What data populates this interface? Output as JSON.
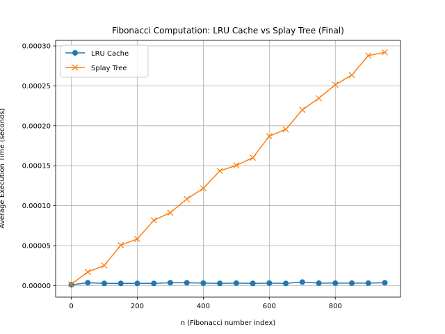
{
  "chart_data": {
    "type": "line",
    "title": "Fibonacci Computation: LRU Cache vs Splay Tree (Final)",
    "xlabel": "n (Fibonacci number index)",
    "ylabel": "Average Execution Time (seconds)",
    "xlim": [
      -47.5,
      997.5
    ],
    "ylim": [
      -1.45e-05,
      0.000307
    ],
    "xticks": [
      0,
      200,
      400,
      600,
      800
    ],
    "xtick_labels": [
      "0",
      "200",
      "400",
      "600",
      "800"
    ],
    "yticks": [
      0,
      5e-05,
      0.0001,
      0.00015,
      0.0002,
      0.00025,
      0.0003
    ],
    "ytick_labels": [
      "0.00000",
      "0.00005",
      "0.00010",
      "0.00015",
      "0.00020",
      "0.00025",
      "0.00030"
    ],
    "grid": true,
    "legend_position": "upper-left",
    "x": [
      0,
      50,
      100,
      150,
      200,
      250,
      300,
      350,
      400,
      450,
      500,
      550,
      600,
      650,
      700,
      750,
      800,
      850,
      900,
      950
    ],
    "series": [
      {
        "name": "LRU Cache",
        "color": "#1f77b4",
        "marker": "circle",
        "values": [
          1e-06,
          3.5e-06,
          2.7e-06,
          2.7e-06,
          2.7e-06,
          2.7e-06,
          3.5e-06,
          3.5e-06,
          3e-06,
          2.7e-06,
          3e-06,
          2.7e-06,
          3e-06,
          2.7e-06,
          4.3e-06,
          3e-06,
          3e-06,
          3e-06,
          3e-06,
          3.5e-06
        ]
      },
      {
        "name": "Splay Tree",
        "color": "#ff7f0e",
        "marker": "x",
        "values": [
          1.7e-06,
          1.7e-05,
          2.52e-05,
          5.05e-05,
          5.83e-05,
          8.17e-05,
          9.13e-05,
          0.0001083,
          0.0001217,
          0.0001435,
          0.0001505,
          0.00016,
          0.000187,
          0.0001955,
          0.00022,
          0.0002345,
          0.0002515,
          0.0002635,
          0.000288,
          0.000292
        ]
      }
    ]
  }
}
